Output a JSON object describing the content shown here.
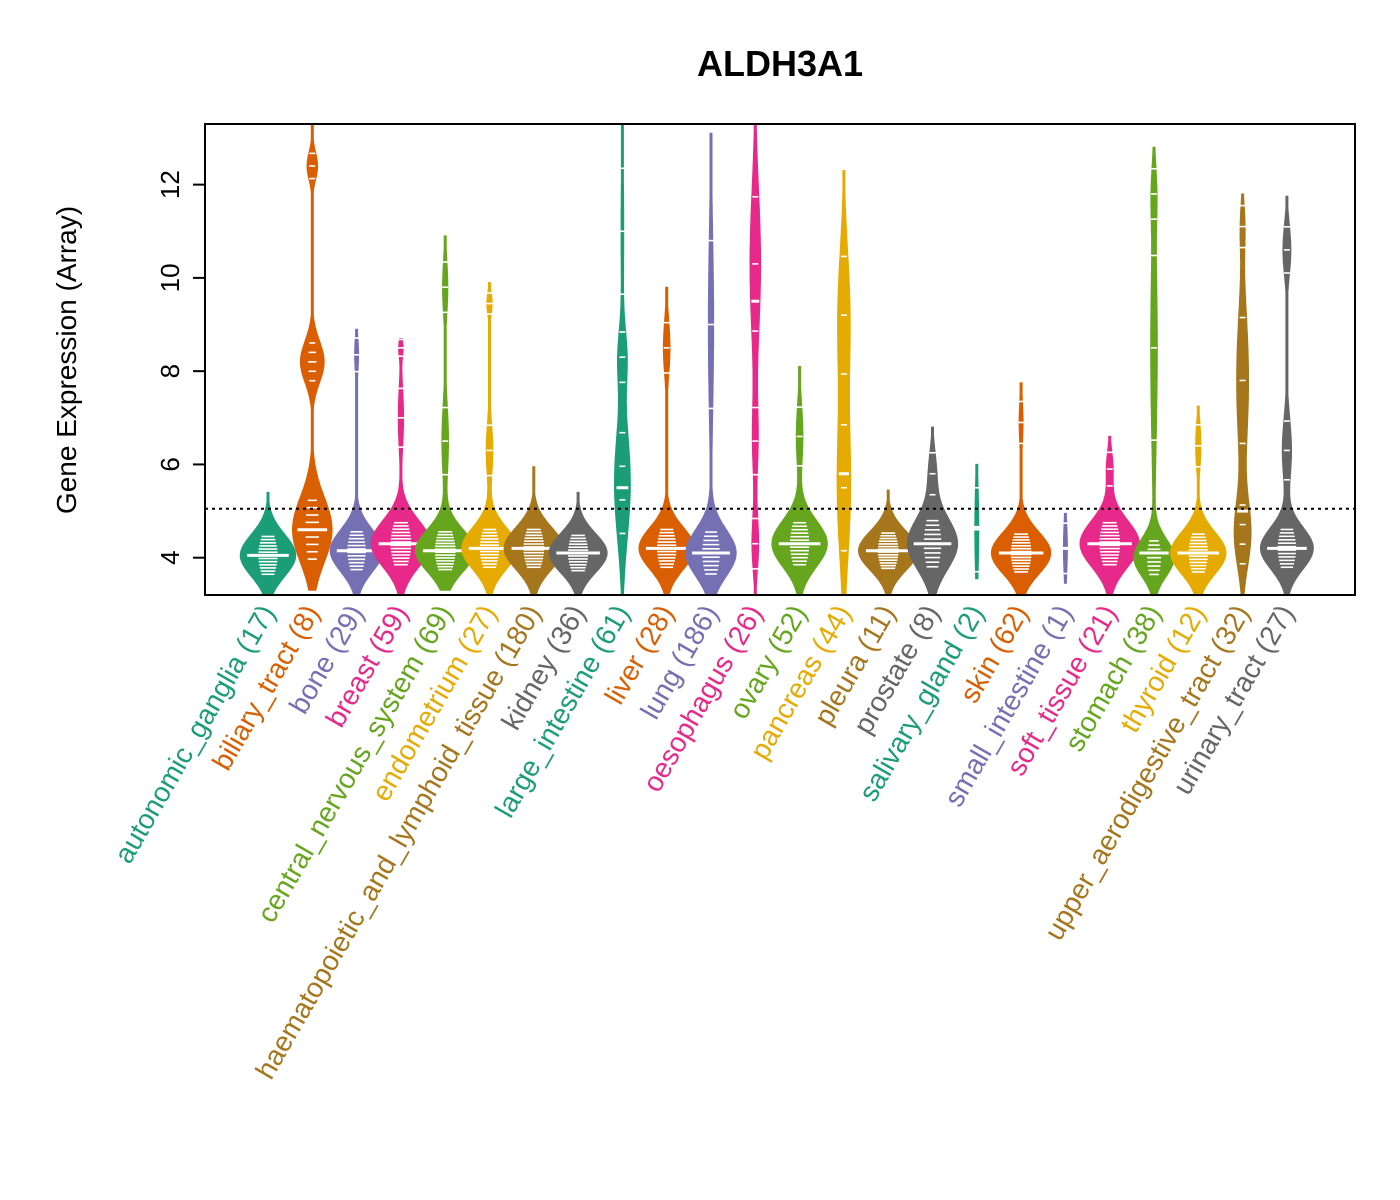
{
  "chart_data": {
    "type": "violin-beeswarm",
    "title": "ALDH3A1",
    "xlabel": "",
    "ylabel": "Gene Expression (Array)",
    "ylim": [
      3.2,
      13.3
    ],
    "yticks": [
      4,
      6,
      8,
      10,
      12
    ],
    "reference_line": 5.05,
    "reference_line_style": "dotted",
    "grid": false,
    "categories": [
      {
        "label": "autonomic_ganglia (17)",
        "color": "#1B9E77",
        "min": 3.2,
        "max": 5.4,
        "median": 4.05,
        "clusters": [
          {
            "c": 4.05,
            "w": 0.42,
            "s": 0.45
          }
        ]
      },
      {
        "label": "biliary_tract (8)",
        "color": "#D95F02",
        "min": 3.3,
        "max": 13.3,
        "median": 4.6,
        "clusters": [
          {
            "c": 4.6,
            "w": 0.3,
            "s": 0.7
          },
          {
            "c": 8.2,
            "w": 0.18,
            "s": 0.45
          },
          {
            "c": 12.4,
            "w": 0.08,
            "s": 0.3
          }
        ]
      },
      {
        "label": "bone (29)",
        "color": "#7570B3",
        "min": 3.2,
        "max": 8.9,
        "median": 4.15,
        "clusters": [
          {
            "c": 4.15,
            "w": 0.4,
            "s": 0.45
          },
          {
            "c": 8.35,
            "w": 0.03,
            "s": 0.4
          }
        ]
      },
      {
        "label": "breast (59)",
        "color": "#E7298A",
        "min": 3.2,
        "max": 8.7,
        "median": 4.3,
        "clusters": [
          {
            "c": 4.3,
            "w": 0.45,
            "s": 0.5
          },
          {
            "c": 7.0,
            "w": 0.04,
            "s": 0.7
          },
          {
            "c": 8.5,
            "w": 0.03,
            "s": 0.2
          }
        ]
      },
      {
        "label": "central_nervous_system (69)",
        "color": "#66A61E",
        "min": 3.3,
        "max": 10.9,
        "median": 4.15,
        "clusters": [
          {
            "c": 4.15,
            "w": 0.45,
            "s": 0.45
          },
          {
            "c": 6.5,
            "w": 0.05,
            "s": 0.8
          },
          {
            "c": 9.8,
            "w": 0.04,
            "s": 0.6
          }
        ]
      },
      {
        "label": "endometrium (27)",
        "color": "#E6AB02",
        "min": 3.2,
        "max": 9.9,
        "median": 4.2,
        "clusters": [
          {
            "c": 4.2,
            "w": 0.42,
            "s": 0.45
          },
          {
            "c": 6.3,
            "w": 0.05,
            "s": 0.6
          },
          {
            "c": 9.45,
            "w": 0.04,
            "s": 0.25
          }
        ]
      },
      {
        "label": "haematopoietic_and_lymphoid_tissue (180)",
        "color": "#A6761D",
        "min": 3.2,
        "max": 5.95,
        "median": 4.2,
        "clusters": [
          {
            "c": 4.2,
            "w": 0.45,
            "s": 0.45
          }
        ]
      },
      {
        "label": "kidney (36)",
        "color": "#666666",
        "min": 3.2,
        "max": 5.4,
        "median": 4.1,
        "clusters": [
          {
            "c": 4.1,
            "w": 0.44,
            "s": 0.42
          }
        ]
      },
      {
        "label": "large_intestine (61)",
        "color": "#1B9E77",
        "min": 3.2,
        "max": 13.3,
        "median": 5.5,
        "clusters": [
          {
            "c": 5.6,
            "w": 0.12,
            "s": 1.2
          },
          {
            "c": 8.3,
            "w": 0.06,
            "s": 0.6
          },
          {
            "c": 11.0,
            "w": 0.02,
            "s": 1.5
          }
        ]
      },
      {
        "label": "liver (28)",
        "color": "#D95F02",
        "min": 3.2,
        "max": 9.8,
        "median": 4.2,
        "clusters": [
          {
            "c": 4.2,
            "w": 0.42,
            "s": 0.45
          },
          {
            "c": 8.5,
            "w": 0.05,
            "s": 0.6
          }
        ]
      },
      {
        "label": "lung (186)",
        "color": "#7570B3",
        "min": 3.2,
        "max": 13.1,
        "median": 4.1,
        "clusters": [
          {
            "c": 4.1,
            "w": 0.38,
            "s": 0.5
          },
          {
            "c": 9.0,
            "w": 0.04,
            "s": 2.0
          }
        ]
      },
      {
        "label": "oesophagus (26)",
        "color": "#E7298A",
        "min": 3.2,
        "max": 13.3,
        "median": 9.5,
        "clusters": [
          {
            "c": 4.3,
            "w": 0.05,
            "s": 0.6
          },
          {
            "c": 10.3,
            "w": 0.08,
            "s": 1.6
          },
          {
            "c": 6.5,
            "w": 0.04,
            "s": 0.8
          }
        ]
      },
      {
        "label": "ovary (52)",
        "color": "#66A61E",
        "min": 3.2,
        "max": 8.1,
        "median": 4.3,
        "clusters": [
          {
            "c": 4.3,
            "w": 0.42,
            "s": 0.5
          },
          {
            "c": 6.6,
            "w": 0.05,
            "s": 0.7
          }
        ]
      },
      {
        "label": "pancreas (44)",
        "color": "#E6AB02",
        "min": 3.2,
        "max": 12.3,
        "median": 5.8,
        "clusters": [
          {
            "c": 5.5,
            "w": 0.1,
            "s": 1.5
          },
          {
            "c": 9.2,
            "w": 0.09,
            "s": 1.4
          }
        ]
      },
      {
        "label": "pleura (11)",
        "color": "#A6761D",
        "min": 3.2,
        "max": 5.45,
        "median": 4.15,
        "clusters": [
          {
            "c": 4.15,
            "w": 0.45,
            "s": 0.42
          }
        ]
      },
      {
        "label": "prostate (8)",
        "color": "#666666",
        "min": 3.2,
        "max": 6.8,
        "median": 4.3,
        "clusters": [
          {
            "c": 4.3,
            "w": 0.38,
            "s": 0.55
          },
          {
            "c": 5.8,
            "w": 0.06,
            "s": 0.5
          }
        ]
      },
      {
        "label": "salivary_gland (2)",
        "color": "#1B9E77",
        "min": 3.55,
        "max": 6.0,
        "median": 4.65,
        "clusters": [
          {
            "c": 4.6,
            "w": 0.03,
            "s": 1.0
          }
        ]
      },
      {
        "label": "skin (62)",
        "color": "#D95F02",
        "min": 3.2,
        "max": 7.75,
        "median": 4.1,
        "clusters": [
          {
            "c": 4.1,
            "w": 0.45,
            "s": 0.45
          },
          {
            "c": 6.9,
            "w": 0.03,
            "s": 0.5
          }
        ]
      },
      {
        "label": "small_intestine (1)",
        "color": "#7570B3",
        "min": 3.45,
        "max": 4.95,
        "median": 4.2,
        "clusters": [
          {
            "c": 4.2,
            "w": 0.03,
            "s": 0.6
          }
        ]
      },
      {
        "label": "soft_tissue (21)",
        "color": "#E7298A",
        "min": 3.2,
        "max": 6.6,
        "median": 4.3,
        "clusters": [
          {
            "c": 4.3,
            "w": 0.45,
            "s": 0.5
          },
          {
            "c": 5.9,
            "w": 0.05,
            "s": 0.4
          }
        ]
      },
      {
        "label": "stomach (38)",
        "color": "#66A61E",
        "min": 3.2,
        "max": 12.8,
        "median": 4.1,
        "clusters": [
          {
            "c": 4.0,
            "w": 0.3,
            "s": 0.4
          },
          {
            "c": 8.5,
            "w": 0.05,
            "s": 2.2
          },
          {
            "c": 11.8,
            "w": 0.03,
            "s": 0.6
          }
        ]
      },
      {
        "label": "thyroid (12)",
        "color": "#E6AB02",
        "min": 3.2,
        "max": 7.25,
        "median": 4.1,
        "clusters": [
          {
            "c": 4.1,
            "w": 0.42,
            "s": 0.45
          },
          {
            "c": 6.4,
            "w": 0.04,
            "s": 0.5
          }
        ]
      },
      {
        "label": "upper_aerodigestive_tract (32)",
        "color": "#A6761D",
        "min": 3.2,
        "max": 11.8,
        "median": 5.0,
        "clusters": [
          {
            "c": 4.5,
            "w": 0.12,
            "s": 0.7
          },
          {
            "c": 7.8,
            "w": 0.09,
            "s": 1.5
          },
          {
            "c": 11.1,
            "w": 0.03,
            "s": 0.5
          }
        ]
      },
      {
        "label": "urinary_tract (27)",
        "color": "#666666",
        "min": 3.2,
        "max": 11.75,
        "median": 4.2,
        "clusters": [
          {
            "c": 4.2,
            "w": 0.4,
            "s": 0.45
          },
          {
            "c": 6.3,
            "w": 0.07,
            "s": 0.7
          },
          {
            "c": 10.6,
            "w": 0.06,
            "s": 0.55
          }
        ]
      }
    ]
  }
}
